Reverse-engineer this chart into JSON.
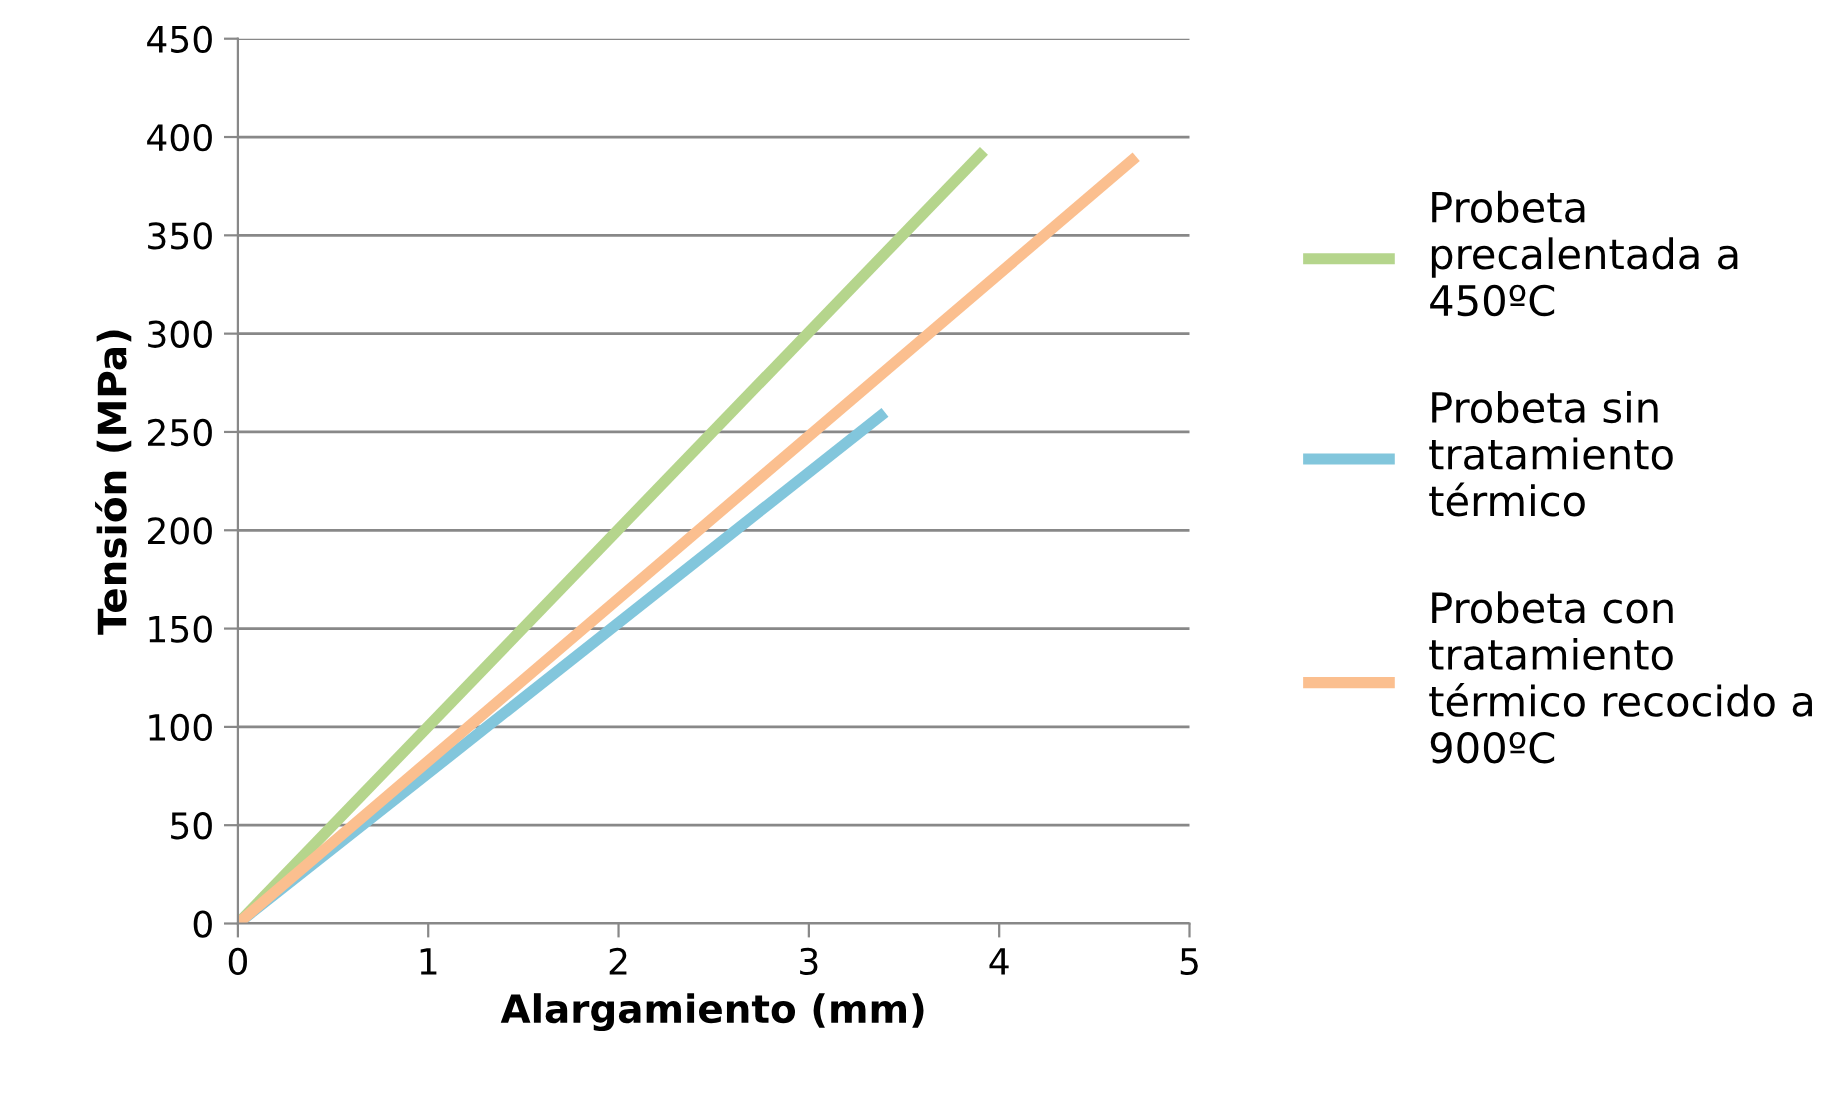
{
  "chart_data": {
    "type": "line",
    "xlabel": "Alargamiento (mm)",
    "ylabel": "Tensión (MPa)",
    "series": [
      {
        "name": "Probeta\nprecalentada a\n450ºC",
        "color": "#b5d58c",
        "x": [
          0,
          3.92
        ],
        "values": [
          0,
          393
        ]
      },
      {
        "name": "Probeta sin\ntratamiento\ntérmico",
        "color": "#82c6dc",
        "x": [
          0,
          3.4
        ],
        "values": [
          0,
          260
        ]
      },
      {
        "name": "Probeta con\ntratamiento\ntérmico recocido a\n900ºC",
        "color": "#fbbf8f",
        "x": [
          0,
          4.72
        ],
        "values": [
          0,
          390
        ]
      }
    ],
    "xlim": [
      0,
      5
    ],
    "xticks": [
      0,
      1,
      2,
      3,
      4,
      5
    ],
    "ylim": [
      0,
      450
    ],
    "yticks": [
      0,
      50,
      100,
      150,
      200,
      250,
      300,
      350,
      400,
      450
    ],
    "grid": "y",
    "legend": "right",
    "marker": "none",
    "line_style": "solid"
  }
}
